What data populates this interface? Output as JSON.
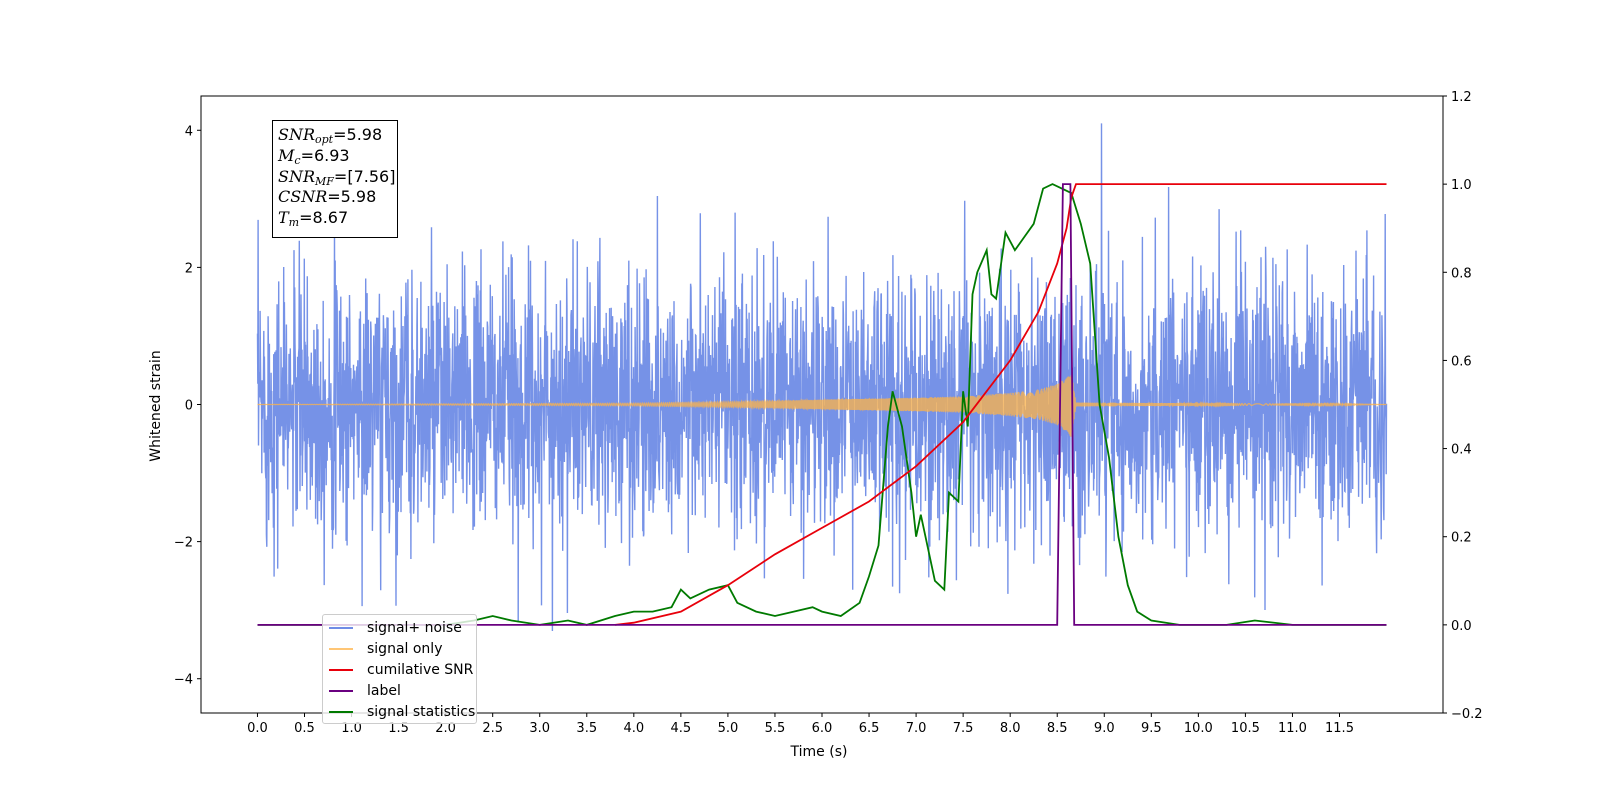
{
  "chart_data": {
    "type": "line",
    "xlabel": "Time (s)",
    "ylabel": "Whitened strain",
    "xlim": [
      -0.6,
      12.6
    ],
    "ylim": [
      -4.5,
      4.5
    ],
    "ylim_right": [
      -0.2,
      1.2
    ],
    "x_ticks": [
      "0.0",
      "0.5",
      "1.0",
      "1.5",
      "2.0",
      "2.5",
      "3.0",
      "3.5",
      "4.0",
      "4.5",
      "5.0",
      "5.5",
      "6.0",
      "6.5",
      "7.0",
      "7.5",
      "8.0",
      "8.5",
      "9.0",
      "9.5",
      "10.0",
      "10.5",
      "11.0",
      "11.5"
    ],
    "y_ticks_left": [
      "4",
      "2",
      "0",
      "−2",
      "−4"
    ],
    "y_ticks_right": [
      "1.2",
      "1.0",
      "0.8",
      "0.6",
      "0.4",
      "0.2",
      "0.0",
      "−0.2"
    ],
    "legend_position": "lower-left",
    "annotation": {
      "snr_opt": "5.98",
      "mc": "6.93",
      "snr_mf": "[7.56]",
      "csnr": "5.98",
      "tm": "8.67"
    },
    "series": [
      {
        "name": "signal+ noise",
        "axis": "left",
        "color": "#6f8ce6",
        "description_values": {
          "x_range": [
            0.0,
            12.0
          ],
          "typical_amplitude": 1.6,
          "peak": 4.1,
          "peak_x": 8.97
        }
      },
      {
        "name": "signal only",
        "axis": "left",
        "color": "#ffb347",
        "x": [
          0.0,
          4.0,
          5.0,
          6.0,
          7.0,
          7.5,
          8.0,
          8.3,
          8.5,
          8.6,
          8.65,
          8.7,
          12.0
        ],
        "envelope": [
          0.0,
          0.02,
          0.04,
          0.07,
          0.1,
          0.12,
          0.17,
          0.22,
          0.3,
          0.4,
          0.48,
          0.03,
          0.0
        ]
      },
      {
        "name": "cumilative SNR",
        "axis": "right",
        "color": "#e8000b",
        "x": [
          3.8,
          4.0,
          4.5,
          5.0,
          5.5,
          6.0,
          6.5,
          7.0,
          7.5,
          8.0,
          8.3,
          8.5,
          8.6,
          8.65,
          8.7,
          12.0
        ],
        "y": [
          0.0,
          0.005,
          0.03,
          0.09,
          0.16,
          0.22,
          0.28,
          0.36,
          0.46,
          0.6,
          0.71,
          0.82,
          0.9,
          0.97,
          1.0,
          1.0
        ]
      },
      {
        "name": "label",
        "axis": "right",
        "color": "#6a0080",
        "x": [
          0.0,
          8.5,
          8.56,
          8.64,
          8.68,
          12.0
        ],
        "y": [
          0.0,
          0.0,
          1.0,
          1.0,
          0.0,
          0.0
        ]
      },
      {
        "name": "signal statistics",
        "axis": "right",
        "color": "#007a00",
        "x": [
          0.0,
          2.0,
          2.3,
          2.5,
          2.7,
          3.0,
          3.3,
          3.5,
          3.8,
          4.0,
          4.2,
          4.4,
          4.5,
          4.6,
          4.8,
          5.0,
          5.1,
          5.3,
          5.5,
          5.7,
          5.9,
          6.0,
          6.2,
          6.4,
          6.5,
          6.6,
          6.7,
          6.75,
          6.85,
          6.95,
          7.0,
          7.05,
          7.2,
          7.3,
          7.35,
          7.45,
          7.5,
          7.55,
          7.6,
          7.65,
          7.75,
          7.8,
          7.85,
          7.95,
          8.05,
          8.15,
          8.25,
          8.35,
          8.45,
          8.55,
          8.65,
          8.75,
          8.85,
          8.95,
          9.05,
          9.15,
          9.25,
          9.35,
          9.5,
          9.8,
          10.3,
          10.6,
          11.0,
          12.0
        ],
        "y": [
          0.0,
          0.0,
          0.01,
          0.02,
          0.01,
          0.0,
          0.01,
          0.0,
          0.02,
          0.03,
          0.03,
          0.04,
          0.08,
          0.06,
          0.08,
          0.09,
          0.05,
          0.03,
          0.02,
          0.03,
          0.04,
          0.03,
          0.02,
          0.05,
          0.11,
          0.18,
          0.45,
          0.53,
          0.45,
          0.3,
          0.2,
          0.25,
          0.1,
          0.08,
          0.3,
          0.28,
          0.53,
          0.45,
          0.75,
          0.8,
          0.85,
          0.75,
          0.74,
          0.89,
          0.85,
          0.88,
          0.91,
          0.99,
          1.0,
          0.99,
          0.98,
          0.91,
          0.82,
          0.5,
          0.38,
          0.2,
          0.09,
          0.03,
          0.01,
          0.0,
          0.0,
          0.01,
          0.0,
          0.0
        ]
      }
    ]
  }
}
